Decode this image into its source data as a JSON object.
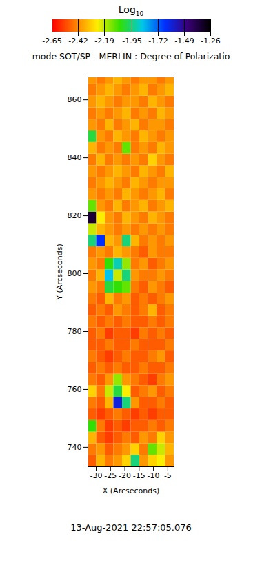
{
  "chart_data": {
    "type": "heatmap",
    "title": "mode SOT/SP - MERLIN : Degree of Polarizatio",
    "xlabel": "X (Arcseconds)",
    "ylabel": "Y (Arcseconds)",
    "annotation": "13-Aug-2021 22:57:05.076",
    "xlim": [
      -32.9,
      -2.8
    ],
    "ylim": [
      733.3,
      867.9
    ],
    "xticks": [
      -30,
      -25,
      -20,
      -15,
      -10,
      -5
    ],
    "yticks": [
      740,
      760,
      780,
      800,
      820,
      840,
      860
    ],
    "colorbar": {
      "label": "Log10",
      "lim": [
        -2.65,
        -1.26
      ],
      "ticks": [
        -2.65,
        -2.42,
        -2.19,
        -1.95,
        -1.72,
        -1.49,
        -1.26
      ]
    },
    "cells": {
      "x_edges": [
        -32.9,
        -29.89,
        -26.88,
        -23.87,
        -20.86,
        -17.85,
        -14.84,
        -11.83,
        -8.82,
        -5.81,
        -2.8
      ],
      "y_edges": [
        733.3,
        737.3,
        741.3,
        745.3,
        749.3,
        753.3,
        757.3,
        761.3,
        765.3,
        769.3,
        773.3,
        777.3,
        781.3,
        785.3,
        789.3,
        793.3,
        797.3,
        801.3,
        805.3,
        809.3,
        813.3,
        817.3,
        821.3,
        825.3,
        829.3,
        833.3,
        837.3,
        841.3,
        845.3,
        849.3,
        853.3,
        857.3,
        861.3,
        865.3,
        867.9
      ],
      "values": [
        [
          -2.5,
          -2.35,
          -2.45,
          -2.4,
          -2.3,
          -1.95,
          -2.4,
          -2.3,
          -2.25,
          -2.4
        ],
        [
          -2.45,
          -2.4,
          -2.5,
          -2.45,
          -2.4,
          -2.3,
          -2.45,
          -2.1,
          -2.2,
          -2.35
        ],
        [
          -2.35,
          -2.5,
          -2.55,
          -2.5,
          -2.45,
          -2.5,
          -2.4,
          -2.45,
          -2.3,
          -2.4
        ],
        [
          -2.05,
          -2.45,
          -2.55,
          -2.5,
          -2.55,
          -2.5,
          -2.5,
          -2.45,
          -2.5,
          -2.45
        ],
        [
          -2.5,
          -2.55,
          -2.5,
          -2.45,
          -2.5,
          -2.55,
          -2.5,
          -2.55,
          -2.5,
          -2.5
        ],
        [
          -2.45,
          -2.5,
          -2.35,
          -1.6,
          -1.95,
          -2.4,
          -2.5,
          -2.5,
          -2.45,
          -2.5
        ],
        [
          -2.3,
          -2.45,
          -2.2,
          -2.0,
          -2.25,
          -2.5,
          -2.45,
          -2.4,
          -2.5,
          -2.45
        ],
        [
          -2.45,
          -2.5,
          -2.4,
          -2.15,
          -2.4,
          -2.45,
          -2.5,
          -2.55,
          -2.45,
          -2.4
        ],
        [
          -2.5,
          -2.45,
          -2.5,
          -2.45,
          -2.5,
          -2.5,
          -2.45,
          -2.5,
          -2.5,
          -2.45
        ],
        [
          -2.45,
          -2.5,
          -2.55,
          -2.5,
          -2.45,
          -2.5,
          -2.5,
          -2.45,
          -2.4,
          -2.5
        ],
        [
          -2.5,
          -2.5,
          -2.45,
          -2.5,
          -2.5,
          -2.45,
          -2.5,
          -2.5,
          -2.5,
          -2.45
        ],
        [
          -2.5,
          -2.45,
          -2.55,
          -2.5,
          -2.5,
          -2.55,
          -2.45,
          -2.5,
          -2.45,
          -2.5
        ],
        [
          -2.45,
          -2.5,
          -2.45,
          -2.5,
          -2.45,
          -2.5,
          -2.5,
          -2.45,
          -2.5,
          -2.45
        ],
        [
          -2.5,
          -2.45,
          -2.5,
          -2.4,
          -2.45,
          -2.5,
          -2.45,
          -2.35,
          -2.5,
          -2.45
        ],
        [
          -2.45,
          -2.5,
          -2.35,
          -2.45,
          -2.4,
          -2.5,
          -2.45,
          -2.5,
          -2.45,
          -2.4
        ],
        [
          -2.4,
          -2.45,
          -2.0,
          -2.05,
          -2.1,
          -2.45,
          -2.5,
          -2.4,
          -2.45,
          -2.5
        ],
        [
          -2.45,
          -2.35,
          -1.85,
          -2.2,
          -1.95,
          -2.4,
          -2.45,
          -2.45,
          -2.4,
          -2.45
        ],
        [
          -2.4,
          -2.45,
          -2.05,
          -1.9,
          -2.15,
          -2.45,
          -2.4,
          -2.5,
          -2.45,
          -2.4
        ],
        [
          -2.45,
          -2.4,
          -2.45,
          -2.35,
          -2.4,
          -2.45,
          -2.5,
          -2.4,
          -2.45,
          -2.45
        ],
        [
          -1.95,
          -1.65,
          -2.35,
          -2.4,
          -1.95,
          -2.35,
          -2.45,
          -2.4,
          -2.45,
          -2.4
        ],
        [
          -2.2,
          -2.35,
          -2.4,
          -2.45,
          -2.4,
          -2.45,
          -2.4,
          -2.45,
          -2.4,
          -2.45
        ],
        [
          -1.35,
          -2.25,
          -2.4,
          -2.45,
          -2.35,
          -2.4,
          -2.45,
          -2.35,
          -2.4,
          -2.45
        ],
        [
          -2.1,
          -2.4,
          -2.45,
          -2.35,
          -2.45,
          -2.4,
          -2.35,
          -2.45,
          -2.4,
          -2.35
        ],
        [
          -2.4,
          -2.45,
          -2.4,
          -2.45,
          -2.35,
          -2.4,
          -2.45,
          -2.4,
          -2.35,
          -2.45
        ],
        [
          -2.45,
          -2.4,
          -2.35,
          -2.4,
          -2.45,
          -2.35,
          -2.4,
          -2.45,
          -2.4,
          -2.4
        ],
        [
          -2.4,
          -2.45,
          -2.4,
          -2.35,
          -2.4,
          -2.45,
          -2.35,
          -2.4,
          -2.45,
          -2.35
        ],
        [
          -2.45,
          -2.35,
          -2.45,
          -2.4,
          -2.45,
          -2.4,
          -2.45,
          -2.3,
          -2.4,
          -2.45
        ],
        [
          -2.35,
          -2.45,
          -2.4,
          -2.45,
          -2.1,
          -2.45,
          -2.4,
          -2.45,
          -2.35,
          -2.4
        ],
        [
          -2.0,
          -2.4,
          -2.45,
          -2.35,
          -2.4,
          -2.45,
          -2.35,
          -2.4,
          -2.45,
          -2.4
        ],
        [
          -2.4,
          -2.45,
          -2.35,
          -2.45,
          -2.4,
          -2.35,
          -2.45,
          -2.4,
          -2.4,
          -2.45
        ],
        [
          -2.45,
          -2.4,
          -2.45,
          -2.4,
          -2.35,
          -2.45,
          -2.4,
          -2.45,
          -2.35,
          -2.4
        ],
        [
          -2.4,
          -2.35,
          -2.4,
          -2.45,
          -2.4,
          -2.4,
          -2.45,
          -2.35,
          -2.4,
          -2.45
        ],
        [
          -2.45,
          -2.4,
          -2.35,
          -2.4,
          -2.45,
          -2.4,
          -2.35,
          -2.45,
          -2.4,
          -2.35
        ],
        [
          -2.4,
          -2.45,
          -2.4,
          -2.35,
          -2.4,
          -2.45,
          -2.4,
          -2.4,
          -2.45,
          -2.4
        ]
      ]
    }
  }
}
